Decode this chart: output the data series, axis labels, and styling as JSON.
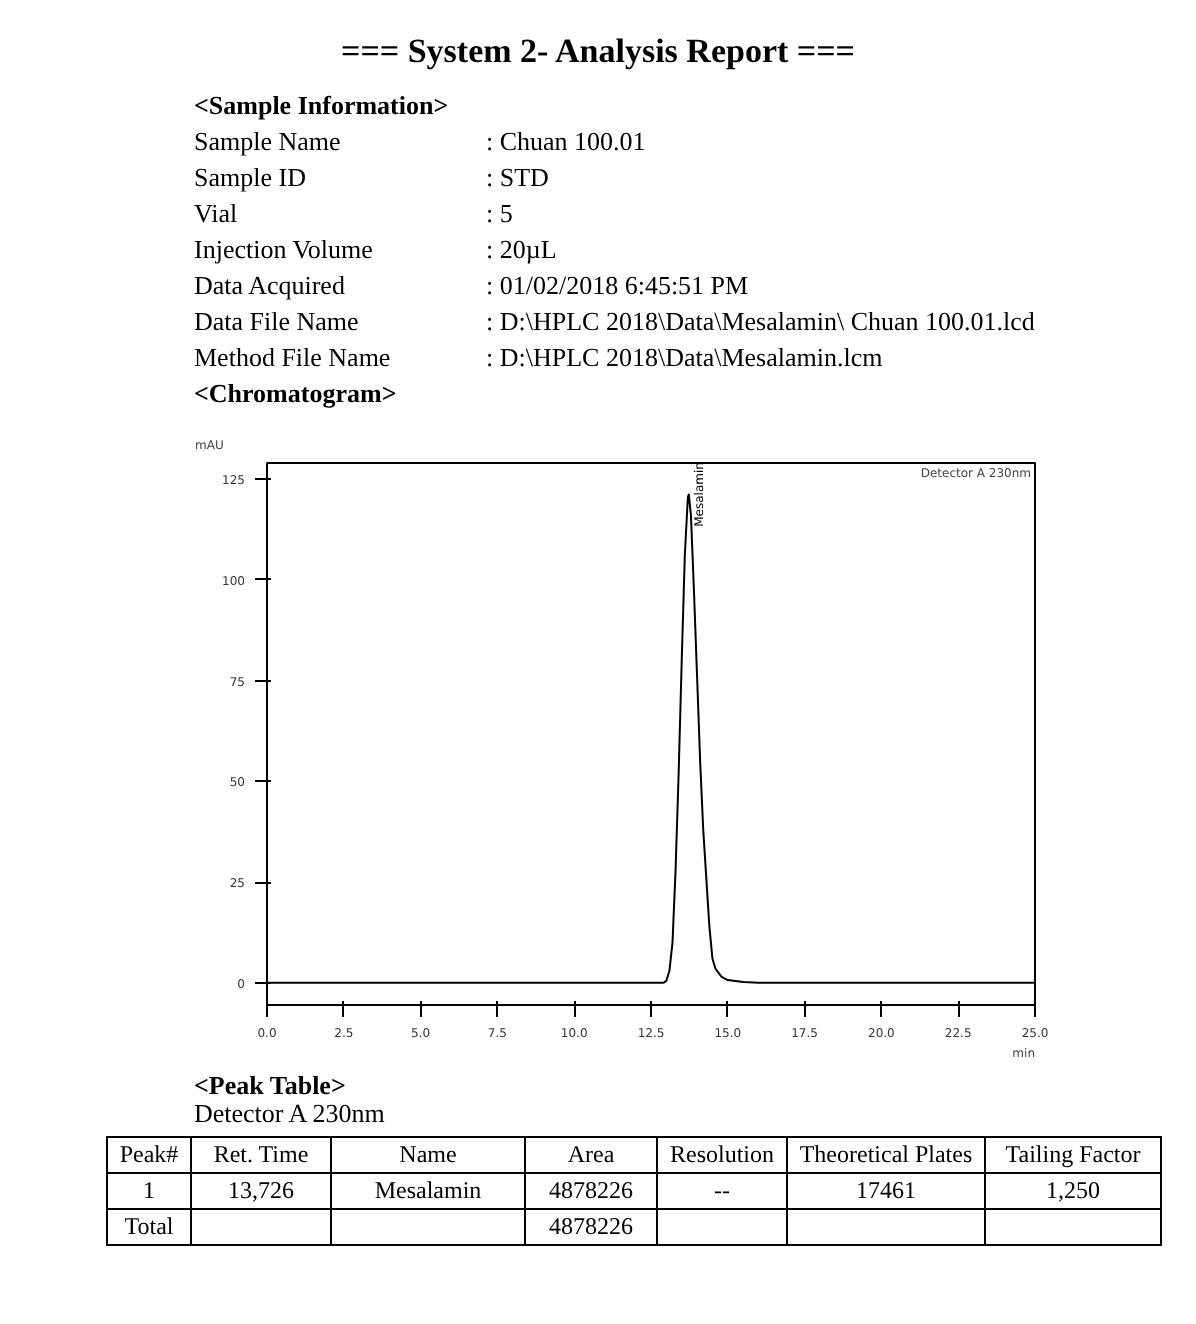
{
  "chart_data": {
    "type": "line",
    "title": "=== System 2- Analysis Report ===",
    "xlabel": "min",
    "ylabel": "mAU",
    "x": [
      0,
      2.5,
      5,
      7.5,
      10,
      12.5,
      12.9,
      13.0,
      13.1,
      13.2,
      13.3,
      13.4,
      13.5,
      13.6,
      13.7,
      13.73,
      13.8,
      13.9,
      14.0,
      14.1,
      14.2,
      14.3,
      14.4,
      14.5,
      14.6,
      14.8,
      15.0,
      15.5,
      16.0,
      20,
      25
    ],
    "series": [
      {
        "color": "#000000",
        "values": [
          0,
          0,
          0,
          0,
          0,
          0,
          0,
          0.5,
          3,
          10,
          28,
          52,
          80,
          106,
          120.5,
          121.2,
          116,
          97,
          76,
          55,
          38,
          26,
          14,
          6,
          3.5,
          1.5,
          0.7,
          0.2,
          0,
          0,
          0
        ]
      }
    ],
    "xlim": [
      0,
      25
    ],
    "ylim": [
      -5.5,
      129
    ],
    "xticks": [
      {
        "value": 0,
        "label": "0.0"
      },
      2.5,
      {
        "value": 5,
        "label": "5.0"
      },
      7.5,
      {
        "value": 10,
        "label": "10.0"
      },
      12.5,
      {
        "value": 15,
        "label": "15.0"
      },
      17.5,
      {
        "value": 20,
        "label": "20.0"
      },
      22.5,
      {
        "value": 25,
        "label": "25.0"
      }
    ],
    "yticks": [
      0,
      25,
      50,
      75,
      100,
      125
    ],
    "grid": false,
    "marker": "none",
    "line_style": "solid",
    "annotations": [
      "<Sample Information>",
      "Sample Name",
      ": Chuan 100.01",
      "Sample ID",
      ": STD",
      "Vial",
      ": 5",
      "Injection Volume",
      ": 20µL",
      "Data Acquired",
      ": 01/02/2018 6:45:51 PM",
      "Data File Name",
      ": D:\\HPLC 2018\\Data\\Mesalamin\\ Chuan 100.01.lcd",
      "Method File Name",
      ": D:\\HPLC 2018\\Data\\Mesalamin.lcm",
      "<Chromatogram>",
      "Detector A 230nm",
      {
        "text": "Mesalamin",
        "x": 13.726,
        "y": 121.2
      },
      "<Peak Table>",
      "Detector A 230nm",
      "Peak#",
      "Ret. Time",
      "Name",
      "Area",
      "Resolution",
      "Theoretical Plates",
      "Tailing Factor",
      "1",
      "13,726",
      "Mesalamin",
      "4878226",
      "--",
      "17461",
      "1,250",
      "Total",
      null,
      null,
      "4878226",
      null,
      null,
      null
    ]
  }
}
